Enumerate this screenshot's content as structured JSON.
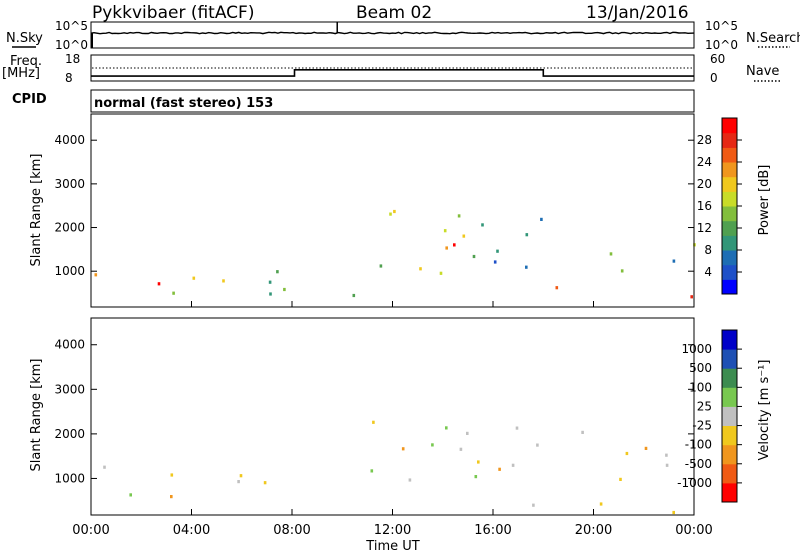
{
  "header": {
    "radar": "Pykkvibaer (fitACF)",
    "beam": "Beam 02",
    "date": "13/Jan/2016"
  },
  "sky_panel": {
    "left_label": "N.Sky",
    "right_label": "N.Search",
    "left_ticks": [
      "10^5",
      "10^0"
    ],
    "right_ticks": [
      "10^5",
      "10^0"
    ]
  },
  "freq_panel": {
    "left_label_1": "Freq.",
    "left_label_2": "[MHz]",
    "right_label": "Nave",
    "left_ticks": [
      "18",
      "8"
    ],
    "right_ticks": [
      "60",
      "0"
    ],
    "freq_steps": [
      {
        "t0": 0,
        "t1": 8.1,
        "f": 9.9
      },
      {
        "t0": 8.1,
        "t1": 18.0,
        "f": 12.3
      },
      {
        "t0": 18.0,
        "t1": 24,
        "f": 9.9
      }
    ]
  },
  "cpid": {
    "label": "CPID",
    "text": "normal (fast stereo) 153"
  },
  "chart_data": [
    {
      "type": "heatmap",
      "name": "power",
      "ylabel": "Slant Range [km]",
      "yticks": [
        "1000",
        "2000",
        "3000",
        "4000"
      ],
      "ylim": [
        180,
        4600
      ],
      "xlim": [
        0,
        24
      ],
      "colorbar": {
        "label": "Power [dB]",
        "ticks": [
          "4",
          "8",
          "12",
          "16",
          "20",
          "24",
          "28"
        ],
        "colors": [
          "#0000ff",
          "#1e50c8",
          "#1e6eb4",
          "#329678",
          "#50a050",
          "#82be3c",
          "#c8dc28",
          "#f0c81e",
          "#f0961e",
          "#f05a14",
          "#e62814",
          "#ff0000"
        ]
      },
      "echo_regions": [
        {
          "t0": 0.0,
          "t1": 0.4,
          "r0": 300,
          "r1": 1700,
          "level": 0.7
        },
        {
          "t0": 1.5,
          "t1": 7.8,
          "r0": 550,
          "r1": 1250,
          "level": 0.45
        },
        {
          "t0": 2.2,
          "t1": 3.4,
          "r0": 600,
          "r1": 1200,
          "level": 0.8
        },
        {
          "t0": 0.2,
          "t1": 10.5,
          "r0": 200,
          "r1": 500,
          "level": 0.35
        },
        {
          "t0": 10.6,
          "t1": 15.0,
          "r0": 900,
          "r1": 2600,
          "level": 0.5
        },
        {
          "t0": 12.5,
          "t1": 14.8,
          "r0": 1100,
          "r1": 1700,
          "level": 0.85
        },
        {
          "t0": 15.0,
          "t1": 19.6,
          "r0": 1000,
          "r1": 2300,
          "level": 0.3
        },
        {
          "t0": 17.4,
          "t1": 19.1,
          "r0": 300,
          "r1": 800,
          "level": 0.85
        },
        {
          "t0": 20.2,
          "t1": 24.0,
          "r0": 800,
          "r1": 1800,
          "level": 0.4
        },
        {
          "t0": 22.0,
          "t1": 24.0,
          "r0": 200,
          "r1": 700,
          "level": 0.9
        }
      ]
    },
    {
      "type": "heatmap",
      "name": "velocity",
      "ylabel": "Slant Range [km]",
      "yticks": [
        "1000",
        "2000",
        "3000",
        "4000"
      ],
      "ylim": [
        180,
        4600
      ],
      "xlim": [
        0,
        24
      ],
      "xticks": [
        "00:00",
        "04:00",
        "08:00",
        "12:00",
        "16:00",
        "20:00",
        "00:00"
      ],
      "xlabel": "Time UT",
      "colorbar": {
        "label": "Velocity [m s⁻¹]",
        "ticks": [
          "-1000",
          "-500",
          "-100",
          "-25",
          "25",
          "100",
          "500",
          "1000"
        ],
        "colors": [
          "#ff0000",
          "#f05a14",
          "#f0961e",
          "#f0c81e",
          "#c0c0c0",
          "#78c850",
          "#3c8c50",
          "#1e50b4",
          "#0000c8"
        ]
      },
      "echo_regions": [
        {
          "t0": 0.0,
          "t1": 0.5,
          "r0": 300,
          "r1": 1700,
          "level": 0.5
        },
        {
          "t0": 1.5,
          "t1": 7.8,
          "r0": 550,
          "r1": 1250,
          "level": 0.45
        },
        {
          "t0": 2.2,
          "t1": 3.4,
          "r0": 600,
          "r1": 1400,
          "level": 0.25
        },
        {
          "t0": 10.6,
          "t1": 15.0,
          "r0": 900,
          "r1": 2600,
          "level": 0.48
        },
        {
          "t0": 15.0,
          "t1": 19.6,
          "r0": 1000,
          "r1": 2300,
          "level": 0.45
        },
        {
          "t0": 17.4,
          "t1": 19.1,
          "r0": 300,
          "r1": 800,
          "level": 0.65
        },
        {
          "t0": 20.2,
          "t1": 24.0,
          "r0": 200,
          "r1": 1800,
          "level": 0.48
        }
      ]
    }
  ]
}
